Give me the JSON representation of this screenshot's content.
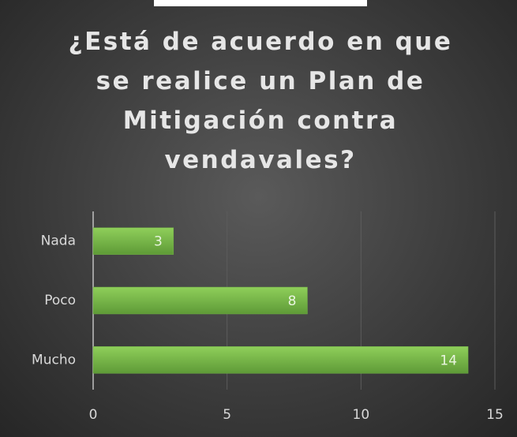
{
  "chart_data": {
    "type": "hbar",
    "title": "¿Está de acuerdo en que se realice un Plan de Mitigación contra vendavales?",
    "categories": [
      "Nada",
      "Poco",
      "Mucho"
    ],
    "values": [
      3,
      8,
      14
    ],
    "color": "#70ad47",
    "xlim": [
      0,
      15
    ],
    "xticks": [
      0,
      5,
      10,
      15
    ],
    "grid": true
  }
}
